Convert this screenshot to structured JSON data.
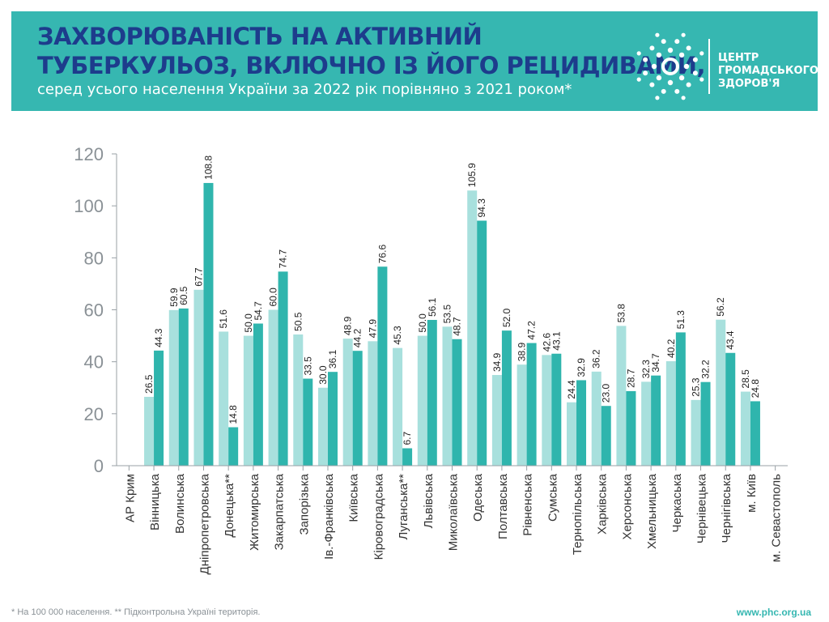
{
  "header": {
    "title_line1": "ЗАХВОРЮВАНІСТЬ НА АКТИВНИЙ",
    "title_line2": "ТУБЕРКУЛЬОЗ, ВКЛЮЧНО ІЗ ЙОГО РЕЦИДИВАМИ,",
    "subtitle": "серед усього населення України за 2022 рік порівняно з 2021 роком*"
  },
  "logo": {
    "line1": "ЦЕНТР",
    "line2": "ГРОМАДСЬКОГО",
    "line3": "ЗДОРОВ'Я"
  },
  "footer": {
    "note": "* На 100 000 населення. ** Підконтрольна Україні територія.",
    "website": "www.phc.org.ua"
  },
  "colors": {
    "header_bg": "#36b7b1",
    "title": "#1d3c8c",
    "series_2021": "#a8e0dd",
    "series_2022": "#2fb5ad"
  },
  "chart_data": {
    "type": "bar",
    "ylim": [
      0,
      120
    ],
    "yticks": [
      0,
      20,
      40,
      60,
      80,
      100,
      120
    ],
    "grid": false,
    "legend": "none",
    "categories": [
      "АР Крим",
      "Вінницька",
      "Волинська",
      "Дніпропетровська",
      "Донецька**",
      "Житомирська",
      "Закарпатська",
      "Запорізька",
      "Ів.-Франківська",
      "Київська",
      "Кіровоградська",
      "Луганська**",
      "Львівська",
      "Миколаївська",
      "Одеська",
      "Полтавська",
      "Рівненська",
      "Сумська",
      "Тернопільська",
      "Харківська",
      "Херсонська",
      "Хмельницька",
      "Черкаська",
      "Чернівецька",
      "Чернігівська",
      "м. Київ",
      "м. Севастополь"
    ],
    "series": [
      {
        "values": [
          null,
          26.5,
          59.9,
          67.7,
          51.6,
          50.0,
          60.0,
          50.5,
          30.0,
          48.9,
          47.9,
          45.3,
          50.0,
          53.5,
          105.9,
          34.9,
          38.9,
          42.6,
          24.4,
          36.2,
          53.8,
          32.3,
          40.2,
          25.3,
          56.2,
          28.5,
          null
        ]
      },
      {
        "values": [
          null,
          44.3,
          60.5,
          108.8,
          14.8,
          54.7,
          74.7,
          33.5,
          36.1,
          44.2,
          76.6,
          6.7,
          56.1,
          48.7,
          94.3,
          52.0,
          47.2,
          43.1,
          32.9,
          23.0,
          28.7,
          34.7,
          51.3,
          32.2,
          43.4,
          24.8,
          null
        ]
      }
    ]
  }
}
